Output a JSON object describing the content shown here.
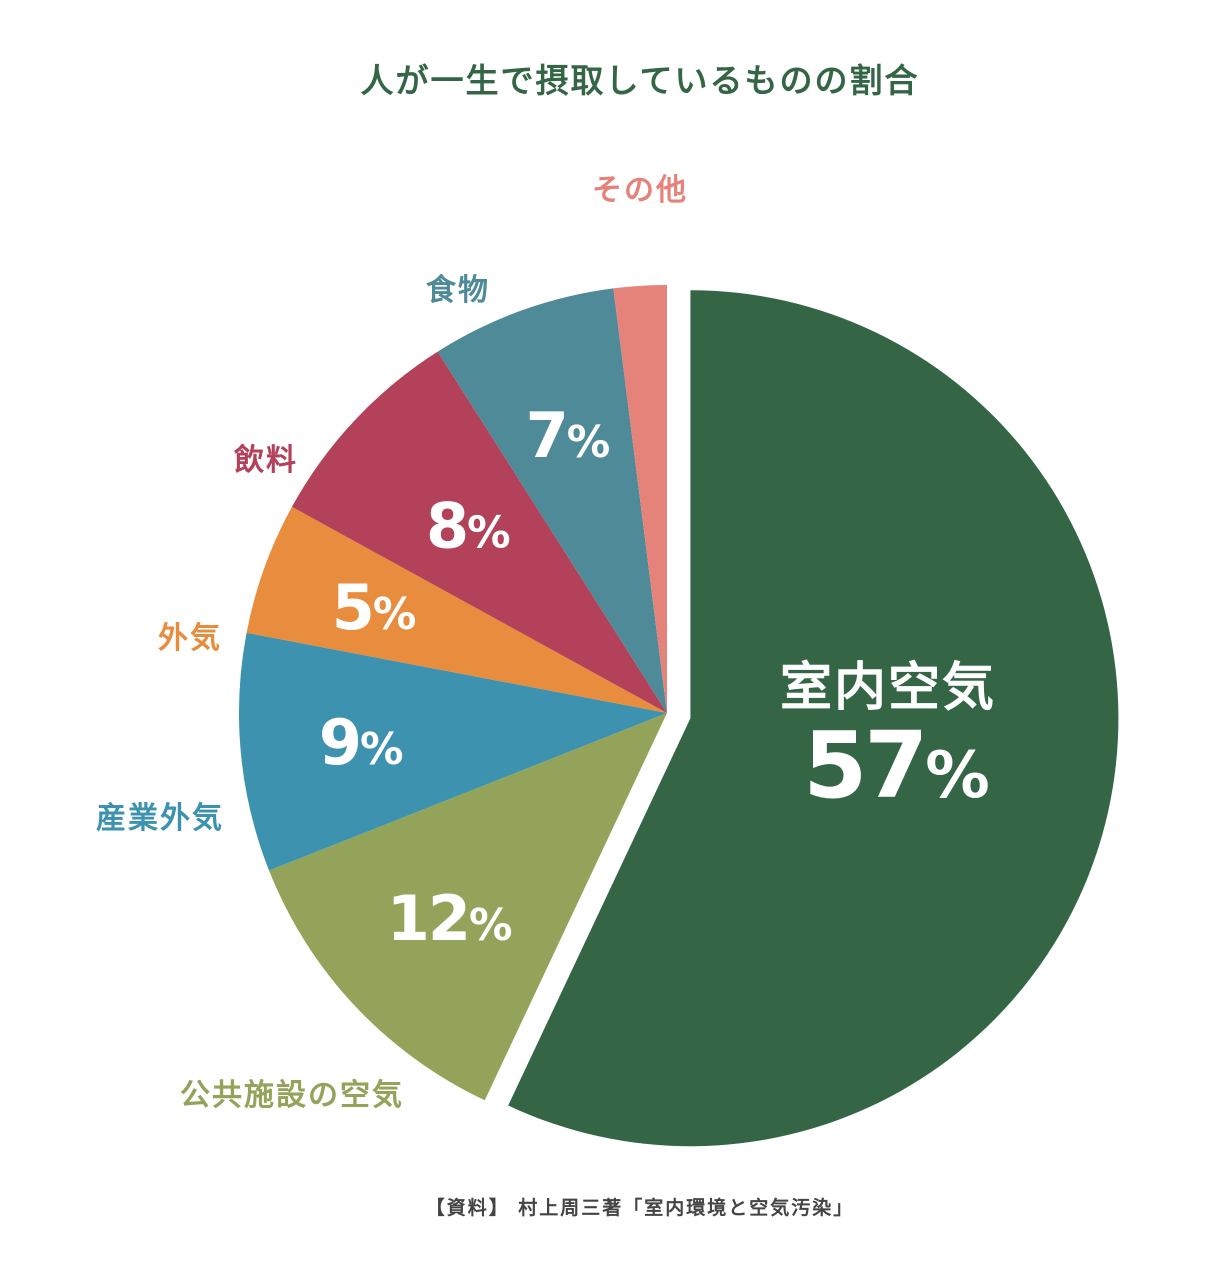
{
  "chart_data": {
    "type": "pie",
    "title": "人が一生で摂取しているものの割合",
    "source": "【資料】 村上周三著「室内環境と空気汚染」",
    "percent_sign": "%",
    "slices": [
      {
        "label": "室内空気",
        "value": 57,
        "color": "#346646",
        "exploded": true
      },
      {
        "label": "公共施設の空気",
        "value": 12,
        "color": "#93a35a"
      },
      {
        "label": "産業外気",
        "value": 9,
        "color": "#3d92b0"
      },
      {
        "label": "外気",
        "value": 5,
        "color": "#e88c3d"
      },
      {
        "label": "飲料",
        "value": 8,
        "color": "#b3415a"
      },
      {
        "label": "食物",
        "value": 7,
        "color": "#4e8a98"
      },
      {
        "label": "その他",
        "value": 2,
        "color": "#e5837a"
      }
    ],
    "title_color": "#346646"
  }
}
